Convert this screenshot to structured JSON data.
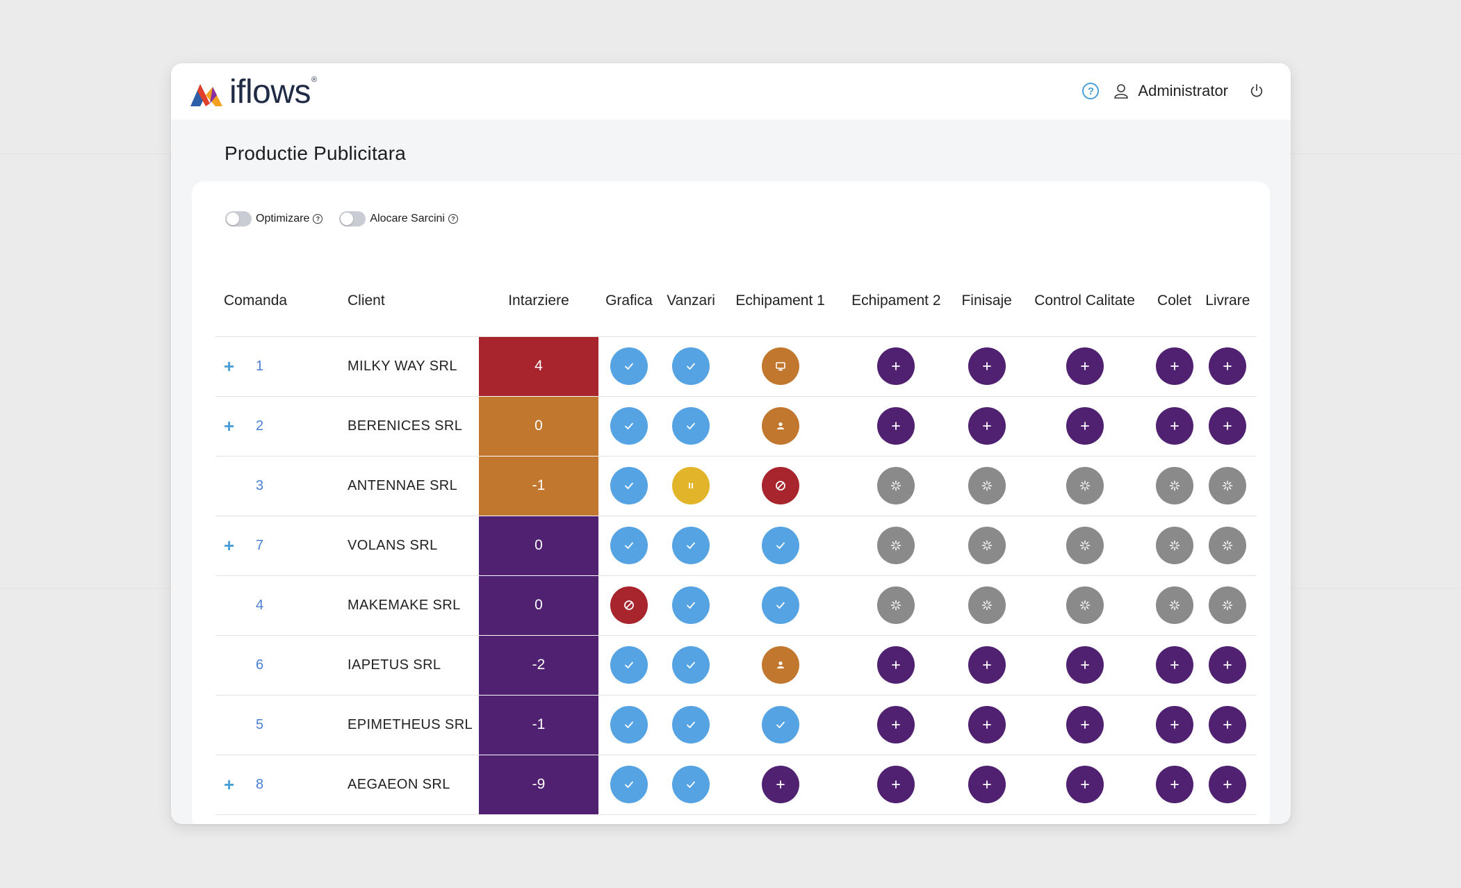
{
  "app": {
    "brand": "iflows",
    "brand_mark": "®",
    "help_icon": "help-circle-icon",
    "user_icon": "user-icon",
    "user_name": "Administrator",
    "power_icon": "power-icon"
  },
  "page": {
    "title": "Productie Publicitara"
  },
  "toggles": [
    {
      "label": "Optimizare",
      "on": false
    },
    {
      "label": "Alocare Sarcini",
      "on": false
    }
  ],
  "columns": {
    "comanda": "Comanda",
    "client": "Client",
    "intarziere": "Intarziere",
    "steps": [
      "Grafica",
      "Vanzari",
      "Echipament 1",
      "Echipament 2",
      "Finisaje",
      "Control Calitate",
      "Colet",
      "Livrare"
    ]
  },
  "colors": {
    "delay_red": "#a8252e",
    "delay_orange": "#c2772f",
    "delay_purple": "#4f2170",
    "done": "#55a3e2",
    "pending": "#4f2170",
    "waiting": "#8a8a8a",
    "blocked": "#a8252e",
    "paused": "#e2b42a",
    "equipment": "#c2772f",
    "assigned": "#c2772f"
  },
  "status_icons": {
    "done": "check-icon",
    "pending": "plus-icon",
    "waiting": "loading-icon",
    "blocked": "blocked-icon",
    "paused": "pause-icon",
    "equipment": "monitor-icon",
    "assigned": "person-icon"
  },
  "orders": [
    {
      "expandable": true,
      "comanda": "1",
      "client": "MILKY WAY SRL",
      "intarziere": "4",
      "delay_color": "#a8252e",
      "steps": [
        "done",
        "done",
        "equipment",
        "pending",
        "pending",
        "pending",
        "pending",
        "pending"
      ]
    },
    {
      "expandable": true,
      "comanda": "2",
      "client": "BERENICES SRL",
      "intarziere": "0",
      "delay_color": "#c2772f",
      "steps": [
        "done",
        "done",
        "assigned",
        "pending",
        "pending",
        "pending",
        "pending",
        "pending"
      ]
    },
    {
      "expandable": false,
      "comanda": "3",
      "client": "ANTENNAE SRL",
      "intarziere": "-1",
      "delay_color": "#c2772f",
      "steps": [
        "done",
        "paused",
        "blocked",
        "waiting",
        "waiting",
        "waiting",
        "waiting",
        "waiting"
      ]
    },
    {
      "expandable": true,
      "comanda": "7",
      "client": "VOLANS SRL",
      "intarziere": "0",
      "delay_color": "#4f2170",
      "steps": [
        "done",
        "done",
        "done",
        "waiting",
        "waiting",
        "waiting",
        "waiting",
        "waiting"
      ]
    },
    {
      "expandable": false,
      "comanda": "4",
      "client": "MAKEMAKE SRL",
      "intarziere": "0",
      "delay_color": "#4f2170",
      "steps": [
        "blocked",
        "done",
        "done",
        "waiting",
        "waiting",
        "waiting",
        "waiting",
        "waiting"
      ]
    },
    {
      "expandable": false,
      "comanda": "6",
      "client": "IAPETUS SRL",
      "intarziere": "-2",
      "delay_color": "#4f2170",
      "steps": [
        "done",
        "done",
        "assigned",
        "pending",
        "pending",
        "pending",
        "pending",
        "pending"
      ]
    },
    {
      "expandable": false,
      "comanda": "5",
      "client": "EPIMETHEUS SRL",
      "intarziere": "-1",
      "delay_color": "#4f2170",
      "steps": [
        "done",
        "done",
        "done",
        "pending",
        "pending",
        "pending",
        "pending",
        "pending"
      ]
    },
    {
      "expandable": true,
      "comanda": "8",
      "client": "AEGAEON SRL",
      "intarziere": "-9",
      "delay_color": "#4f2170",
      "steps": [
        "done",
        "done",
        "pending",
        "pending",
        "pending",
        "pending",
        "pending",
        "pending"
      ]
    }
  ]
}
